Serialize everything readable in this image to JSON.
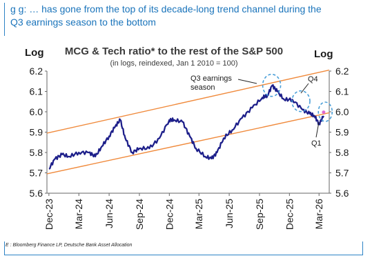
{
  "header": {
    "prefix": "g      g: … has gone from the top of its decade-long trend channel during the",
    "line2": "Q3 earnings season to the bottom"
  },
  "footer": {
    "source_prefix": "E",
    "source_text": ": Bloomberg Finance LP, Deutsche Bank Asset Allocation"
  },
  "colors": {
    "series": "#1d1f8a",
    "channel": "#f08a3c",
    "highlight": "#4a9fd8",
    "marker": "#e06bd0",
    "text_accent": "#1a74bb"
  },
  "chart_data": {
    "type": "line",
    "title": "MCG & Tech ratio* to the rest of the S&P 500",
    "subtitle": "(in logs, reindexed, Jan 1 2010 = 100)",
    "ylabel_left": "Log",
    "ylabel_right": "Log",
    "ylim": [
      5.6,
      6.2
    ],
    "yticks": [
      "6.2",
      "6.1",
      "6.0",
      "5.9",
      "5.8",
      "5.7",
      "5.6"
    ],
    "xticks": [
      "Dec-23",
      "Mar-24",
      "Jun-24",
      "Sep-24",
      "Dec-24",
      "Mar-25",
      "Jun-25",
      "Sep-25",
      "Dec-25",
      "Mar-26"
    ],
    "grid": false,
    "series": [
      {
        "values": [
          [
            "2023-12-01",
            5.72
          ],
          [
            "2023-12-20",
            5.77
          ],
          [
            "2024-01-10",
            5.79
          ],
          [
            "2024-02-01",
            5.78
          ],
          [
            "2024-03-01",
            5.8
          ],
          [
            "2024-04-01",
            5.8
          ],
          [
            "2024-04-20",
            5.78
          ],
          [
            "2024-05-10",
            5.83
          ],
          [
            "2024-06-01",
            5.88
          ],
          [
            "2024-06-20",
            5.93
          ],
          [
            "2024-07-05",
            5.96
          ],
          [
            "2024-07-20",
            5.87
          ],
          [
            "2024-08-10",
            5.8
          ],
          [
            "2024-09-01",
            5.82
          ],
          [
            "2024-10-01",
            5.82
          ],
          [
            "2024-11-01",
            5.87
          ],
          [
            "2024-12-01",
            5.96
          ],
          [
            "2024-12-15",
            5.96
          ],
          [
            "2025-01-10",
            5.95
          ],
          [
            "2025-02-01",
            5.88
          ],
          [
            "2025-02-20",
            5.82
          ],
          [
            "2025-03-20",
            5.78
          ],
          [
            "2025-04-08",
            5.77
          ],
          [
            "2025-04-25",
            5.8
          ],
          [
            "2025-05-15",
            5.87
          ],
          [
            "2025-06-10",
            5.91
          ],
          [
            "2025-07-10",
            5.97
          ],
          [
            "2025-08-10",
            6.02
          ],
          [
            "2025-09-10",
            6.07
          ],
          [
            "2025-09-25",
            6.08
          ],
          [
            "2025-10-10",
            6.13
          ],
          [
            "2025-10-25",
            6.1
          ],
          [
            "2025-11-15",
            6.06
          ],
          [
            "2025-12-10",
            6.06
          ],
          [
            "2026-01-10",
            6.01
          ],
          [
            "2026-02-01",
            5.99
          ],
          [
            "2026-02-15",
            5.98
          ],
          [
            "2026-03-01",
            5.94
          ],
          [
            "2026-03-15",
            5.98
          ]
        ]
      }
    ],
    "channel": {
      "upper": [
        [
          "2023-11-25",
          5.895
        ],
        [
          "2026-04-01",
          6.205
        ]
      ],
      "lower": [
        [
          "2023-11-25",
          5.695
        ],
        [
          "2026-04-01",
          5.995
        ]
      ]
    },
    "annotations": [
      {
        "line1": "Q3 earnings",
        "line2": "season",
        "date": "2025-10-10",
        "value": 6.13
      },
      {
        "line1": "Q4",
        "date": "2026-01-10",
        "value": 6.06
      },
      {
        "line1": "Q1",
        "date": "2026-03-20",
        "value": 6.0
      }
    ]
  }
}
